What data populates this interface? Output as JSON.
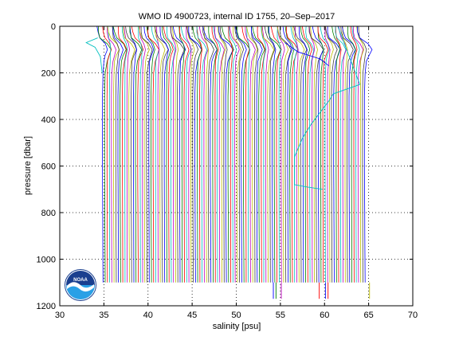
{
  "chart_data": {
    "type": "line",
    "title": "WMO ID 4900723, internal ID 1755, 20–Sep–2017",
    "xlabel": "salinity [psu]",
    "ylabel": "pressure [dbar]",
    "xlim": [
      30,
      70
    ],
    "ylim": [
      0,
      1200
    ],
    "y_reversed": true,
    "xticks": [
      "30",
      "35",
      "40",
      "45",
      "50",
      "55",
      "60",
      "65",
      "70"
    ],
    "yticks": [
      "0",
      "200",
      "400",
      "600",
      "800",
      "1000",
      "1200"
    ],
    "grid": "dotted",
    "offset_profiles": {
      "profile_count": 120,
      "offset_step_psu": 0.25,
      "first_profile_salinity_deep_psu": 34.9,
      "last_profile_salinity_deep_psu": 64.6,
      "pressure_levels_dbar": [
        0,
        25,
        50,
        75,
        100,
        125,
        150,
        200,
        300,
        400,
        500,
        600,
        700,
        800,
        900,
        1000,
        1100
      ],
      "base_profile_salinity_psu": [
        -0.55,
        -0.5,
        -0.35,
        0.2,
        0.45,
        0.25,
        0.1,
        0.0,
        -0.05,
        -0.05,
        -0.05,
        -0.05,
        -0.04,
        -0.03,
        -0.02,
        -0.01,
        0.0
      ],
      "max_pressure_dbar": 1100,
      "colors": [
        "#0000ff",
        "#008000",
        "#ff0000",
        "#00bfbf",
        "#bf00bf",
        "#bfbf00",
        "#404040"
      ]
    },
    "outlier_profiles": [
      {
        "color": "#00bfbf",
        "x": [
          34.3,
          33.0,
          34.0,
          34.6,
          34.8
        ],
        "y": [
          50,
          70,
          90,
          130,
          200
        ]
      },
      {
        "color": "#00bfbf",
        "x": [
          61.5,
          64.0,
          61.0,
          60.5,
          59.5,
          58.5,
          57.5,
          56.6,
          56.6,
          58.0,
          59.8
        ],
        "y": [
          0,
          250,
          290,
          320,
          370,
          420,
          480,
          560,
          680,
          690,
          700
        ]
      },
      {
        "color": "#0000ff",
        "x": [
          55.5,
          57.0,
          59.5,
          60.5
        ],
        "y": [
          70,
          110,
          140,
          170
        ]
      }
    ],
    "deep_extensions": [
      {
        "color": "#0000ff",
        "x": 54.2,
        "y": [
          1100,
          1170
        ]
      },
      {
        "color": "#008000",
        "x": 54.5,
        "y": [
          1100,
          1170
        ]
      },
      {
        "color": "#bf00bf",
        "x": 55.1,
        "y": [
          1100,
          1170
        ]
      },
      {
        "color": "#ff0000",
        "x": 59.4,
        "y": [
          1100,
          1170
        ]
      },
      {
        "color": "#0000ff",
        "x": 60.1,
        "y": [
          1100,
          1170
        ]
      },
      {
        "color": "#ff0000",
        "x": 60.4,
        "y": [
          1100,
          1170
        ]
      },
      {
        "color": "#bfbf00",
        "x": 65.1,
        "y": [
          1100,
          1170
        ]
      }
    ]
  },
  "logo": {
    "text": "NOAA",
    "colors": {
      "sky": "#1a3f8f",
      "sea": "#2aa0e6",
      "wave": "#ffffff"
    }
  }
}
